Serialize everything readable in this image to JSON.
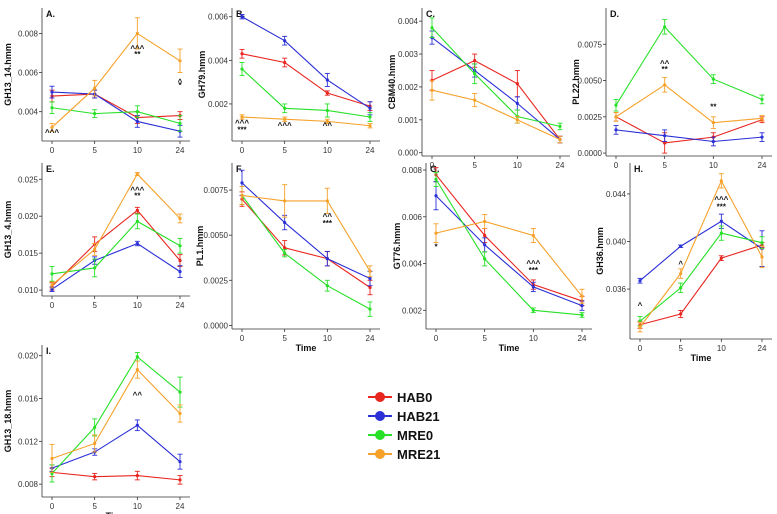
{
  "legend": [
    {
      "name": "HAB0",
      "color": "#e8251f"
    },
    {
      "name": "HAB21",
      "color": "#2b2fd6"
    },
    {
      "name": "MRE0",
      "color": "#27e027"
    },
    {
      "name": "MRE21",
      "color": "#f6a12a"
    }
  ],
  "chart_data": [
    {
      "id": "A",
      "panel_label": "A.",
      "type": "line",
      "ylabel": "GH13_14.hmm",
      "xlabel": "",
      "x_ticks": [
        "0",
        "5",
        "10",
        "24"
      ],
      "y_ticks": [
        "0.004",
        "0.006",
        "0.008"
      ],
      "ylim": [
        0.0025,
        0.0093
      ],
      "series": [
        {
          "name": "HAB0",
          "values": [
            0.0048,
            0.0049,
            0.0037,
            0.0038
          ],
          "errors": [
            0.0003,
            0.0002,
            0.0003,
            0.0002
          ]
        },
        {
          "name": "HAB21",
          "values": [
            0.005,
            0.0049,
            0.0035,
            0.003
          ],
          "errors": [
            0.0003,
            0.0002,
            0.0003,
            0.0003
          ]
        },
        {
          "name": "MRE0",
          "values": [
            0.0042,
            0.0039,
            0.004,
            0.0034
          ],
          "errors": [
            0.0003,
            0.0002,
            0.0003,
            0.0004
          ]
        },
        {
          "name": "MRE21",
          "values": [
            0.0032,
            0.0052,
            0.008,
            0.0066
          ],
          "errors": [
            0.0002,
            0.0004,
            0.0008,
            0.0006
          ]
        }
      ],
      "annotations": [
        {
          "x": "0",
          "y": 0.0028,
          "text": "^^^"
        },
        {
          "x": "10",
          "y": 0.0071,
          "text": "^^^"
        },
        {
          "x": "10",
          "y": 0.0068,
          "text": "**"
        },
        {
          "x": "24",
          "y": 0.0054,
          "text": "^"
        },
        {
          "x": "24",
          "y": 0.0052,
          "text": "*"
        }
      ]
    },
    {
      "id": "B",
      "panel_label": "B.",
      "type": "line",
      "ylabel": "GH79.hmm",
      "xlabel": "",
      "x_ticks": [
        "0",
        "5",
        "10",
        "24"
      ],
      "y_ticks": [
        "0.002",
        "0.004",
        "0.006"
      ],
      "ylim": [
        0.0003,
        0.0064
      ],
      "series": [
        {
          "name": "HAB0",
          "values": [
            0.0043,
            0.0039,
            0.0025,
            0.0019
          ],
          "errors": [
            0.0002,
            0.0002,
            0.0001,
            0.0002
          ]
        },
        {
          "name": "HAB21",
          "values": [
            0.006,
            0.0049,
            0.0031,
            0.0018
          ],
          "errors": [
            0.0001,
            0.0002,
            0.0003,
            0.0003
          ]
        },
        {
          "name": "MRE0",
          "values": [
            0.0036,
            0.0018,
            0.0017,
            0.0014
          ],
          "errors": [
            0.0003,
            0.0002,
            0.0003,
            0.0002
          ]
        },
        {
          "name": "MRE21",
          "values": [
            0.0014,
            0.0013,
            0.0012,
            0.001
          ],
          "errors": [
            0.0001,
            0.0001,
            0.0001,
            0.0001
          ]
        }
      ],
      "annotations": [
        {
          "x": "0",
          "y": 0.001,
          "text": "^^^"
        },
        {
          "x": "0",
          "y": 0.0007,
          "text": "***"
        },
        {
          "x": "5",
          "y": 0.0009,
          "text": "^^^"
        },
        {
          "x": "10",
          "y": 0.0009,
          "text": "^^"
        }
      ]
    },
    {
      "id": "C",
      "panel_label": "C.",
      "type": "line",
      "ylabel": "CBM40.hmm",
      "xlabel": "",
      "x_ticks": [
        "0",
        "5",
        "10",
        "24"
      ],
      "y_ticks": [
        "0.000",
        "0.001",
        "0.002",
        "0.003",
        "0.004"
      ],
      "ylim": [
        -0.0001,
        0.0044
      ],
      "series": [
        {
          "name": "HAB0",
          "values": [
            0.0022,
            0.0028,
            0.0021,
            0.0004
          ],
          "errors": [
            0.0003,
            0.0002,
            0.0004,
            0.0001
          ]
        },
        {
          "name": "HAB21",
          "values": [
            0.0035,
            0.0025,
            0.0015,
            0.0004
          ],
          "errors": [
            0.0002,
            0.0002,
            0.0002,
            0.0001
          ]
        },
        {
          "name": "MRE0",
          "values": [
            0.0038,
            0.0024,
            0.0011,
            0.0008
          ],
          "errors": [
            0.0003,
            0.0003,
            0.0002,
            0.0001
          ]
        },
        {
          "name": "MRE21",
          "values": [
            0.0019,
            0.0016,
            0.001,
            0.0004
          ],
          "errors": [
            0.0003,
            0.0002,
            0.0001,
            0.0001
          ]
        }
      ],
      "annotations": []
    },
    {
      "id": "D",
      "panel_label": "D.",
      "type": "line",
      "ylabel": "PL22.hmm",
      "xlabel": "",
      "x_ticks": [
        "0",
        "5",
        "10",
        "24"
      ],
      "y_ticks": [
        "0.0000",
        "0.0025",
        "0.0050",
        "0.0075"
      ],
      "ylim": [
        -0.0002,
        0.01
      ],
      "series": [
        {
          "name": "HAB0",
          "values": [
            0.0025,
            0.0007,
            0.0011,
            0.0023
          ],
          "errors": [
            0.0003,
            0.0007,
            0.0003,
            0.0002
          ]
        },
        {
          "name": "HAB21",
          "values": [
            0.0016,
            0.0012,
            0.0008,
            0.0011
          ],
          "errors": [
            0.0003,
            0.0004,
            0.0003,
            0.0003
          ]
        },
        {
          "name": "MRE0",
          "values": [
            0.0033,
            0.0087,
            0.0051,
            0.0037
          ],
          "errors": [
            0.0004,
            0.0005,
            0.0003,
            0.0003
          ]
        },
        {
          "name": "MRE21",
          "values": [
            0.0025,
            0.0047,
            0.0021,
            0.0024
          ],
          "errors": [
            0.0003,
            0.0005,
            0.0004,
            0.0002
          ]
        }
      ],
      "annotations": [
        {
          "x": "5",
          "y": 0.006,
          "text": "^^"
        },
        {
          "x": "5",
          "y": 0.0056,
          "text": "**"
        },
        {
          "x": "10",
          "y": 0.003,
          "text": "**"
        }
      ]
    },
    {
      "id": "E",
      "panel_label": "E.",
      "type": "line",
      "ylabel": "GH13_4.hmm",
      "xlabel": "",
      "x_ticks": [
        "0",
        "5",
        "10",
        "24"
      ],
      "y_ticks": [
        "0.010",
        "0.015",
        "0.020",
        "0.025"
      ],
      "ylim": [
        0.0092,
        0.0272
      ],
      "series": [
        {
          "name": "HAB0",
          "values": [
            0.0105,
            0.0162,
            0.0208,
            0.014
          ],
          "errors": [
            0.0005,
            0.001,
            0.0004,
            0.0008
          ]
        },
        {
          "name": "HAB21",
          "values": [
            0.0101,
            0.014,
            0.0163,
            0.0125
          ],
          "errors": [
            0.0003,
            0.0005,
            0.0003,
            0.0008
          ]
        },
        {
          "name": "MRE0",
          "values": [
            0.0122,
            0.013,
            0.0193,
            0.016
          ],
          "errors": [
            0.001,
            0.0012,
            0.001,
            0.001
          ]
        },
        {
          "name": "MRE21",
          "values": [
            0.0107,
            0.0155,
            0.0257,
            0.0197
          ],
          "errors": [
            0.0004,
            0.0008,
            0.0002,
            0.0006
          ]
        }
      ],
      "annotations": [
        {
          "x": "10",
          "y": 0.0232,
          "text": "^^^"
        },
        {
          "x": "10",
          "y": 0.0224,
          "text": "**"
        }
      ]
    },
    {
      "id": "F",
      "panel_label": "F.",
      "type": "line",
      "ylabel": "PL1.hmm",
      "xlabel": "Time",
      "x_ticks": [
        "0",
        "5",
        "10",
        "24"
      ],
      "y_ticks": [
        "0.0000",
        "0.0025",
        "0.0050",
        "0.0075"
      ],
      "ylim": [
        -0.0002,
        0.009
      ],
      "series": [
        {
          "name": "HAB0",
          "values": [
            0.007,
            0.0043,
            0.0037,
            0.0021
          ],
          "errors": [
            0.0004,
            0.0004,
            0.0004,
            0.0004
          ]
        },
        {
          "name": "HAB21",
          "values": [
            0.0079,
            0.0057,
            0.0037,
            0.0026
          ],
          "errors": [
            0.0007,
            0.0004,
            0.0004,
            0.0004
          ]
        },
        {
          "name": "MRE0",
          "values": [
            0.0072,
            0.004,
            0.0022,
            0.0009
          ],
          "errors": [
            0.0005,
            0.0002,
            0.0003,
            0.0004
          ]
        },
        {
          "name": "MRE21",
          "values": [
            0.0072,
            0.0069,
            0.0069,
            0.003
          ],
          "errors": [
            0.0005,
            0.0009,
            0.0007,
            0.0003
          ]
        }
      ],
      "annotations": [
        {
          "x": "10",
          "y": 0.0059,
          "text": "^^"
        },
        {
          "x": "10",
          "y": 0.0055,
          "text": "***"
        }
      ]
    },
    {
      "id": "G",
      "panel_label": "G.",
      "type": "line",
      "ylabel": "GT76.hmm",
      "xlabel": "Time",
      "x_ticks": [
        "0",
        "5",
        "10",
        "24"
      ],
      "y_ticks": [
        "0.002",
        "0.004",
        "0.006",
        "0.008"
      ],
      "ylim": [
        0.0012,
        0.0083
      ],
      "series": [
        {
          "name": "HAB0",
          "values": [
            0.0078,
            0.0052,
            0.0031,
            0.0024
          ],
          "errors": [
            0.0003,
            0.0003,
            0.0002,
            0.0002
          ]
        },
        {
          "name": "HAB21",
          "values": [
            0.0069,
            0.0048,
            0.003,
            0.0022
          ],
          "errors": [
            0.0006,
            0.0003,
            0.0002,
            0.0002
          ]
        },
        {
          "name": "MRE0",
          "values": [
            0.0076,
            0.0042,
            0.002,
            0.0018
          ],
          "errors": [
            0.0003,
            0.0003,
            0.0001,
            0.0001
          ]
        },
        {
          "name": "MRE21",
          "values": [
            0.0053,
            0.0058,
            0.0052,
            0.0026
          ],
          "errors": [
            0.0004,
            0.0003,
            0.0003,
            0.0003
          ]
        }
      ],
      "annotations": [
        {
          "x": "0",
          "y": 0.0046,
          "text": "*"
        },
        {
          "x": "10",
          "y": 0.0039,
          "text": "^^^"
        },
        {
          "x": "10",
          "y": 0.0036,
          "text": "***"
        }
      ]
    },
    {
      "id": "H",
      "panel_label": "H.",
      "type": "line",
      "ylabel": "GH36.hmm",
      "xlabel": "Time",
      "x_ticks": [
        "0",
        "5",
        "10",
        "24"
      ],
      "y_ticks": [
        "0.036",
        "0.040",
        "0.044"
      ],
      "ylim": [
        0.0318,
        0.0466
      ],
      "series": [
        {
          "name": "HAB0",
          "values": [
            0.033,
            0.0339,
            0.0386,
            0.0397
          ],
          "errors": [
            0.0003,
            0.0003,
            0.0002,
            0.0002
          ]
        },
        {
          "name": "HAB21",
          "values": [
            0.0367,
            0.0396,
            0.0417,
            0.0394
          ],
          "errors": [
            0.0002,
            0.0001,
            0.0006,
            0.0015
          ]
        },
        {
          "name": "MRE0",
          "values": [
            0.0333,
            0.0361,
            0.0407,
            0.0399
          ],
          "errors": [
            0.0004,
            0.0004,
            0.0006,
            0.0005
          ]
        },
        {
          "name": "MRE21",
          "values": [
            0.0328,
            0.0373,
            0.0451,
            0.0387
          ],
          "errors": [
            0.0004,
            0.0004,
            0.0006,
            0.0009
          ]
        }
      ],
      "annotations": [
        {
          "x": "0",
          "y": 0.0344,
          "text": "^"
        },
        {
          "x": "5",
          "y": 0.0379,
          "text": "^"
        },
        {
          "x": "10",
          "y": 0.0433,
          "text": "^^^"
        },
        {
          "x": "10",
          "y": 0.0427,
          "text": "***"
        }
      ]
    },
    {
      "id": "I",
      "panel_label": "I.",
      "type": "line",
      "ylabel": "GH13_18.hmm",
      "xlabel": "Time",
      "x_ticks": [
        "0",
        "5",
        "10",
        "24"
      ],
      "y_ticks": [
        "0.008",
        "0.012",
        "0.016",
        "0.020"
      ],
      "ylim": [
        0.0068,
        0.021
      ],
      "series": [
        {
          "name": "HAB0",
          "values": [
            0.0091,
            0.0087,
            0.0088,
            0.0084
          ],
          "errors": [
            0.0004,
            0.0003,
            0.0004,
            0.0004
          ]
        },
        {
          "name": "HAB21",
          "values": [
            0.0095,
            0.011,
            0.0135,
            0.0101
          ],
          "errors": [
            0.0003,
            0.0003,
            0.0005,
            0.0007
          ]
        },
        {
          "name": "MRE0",
          "values": [
            0.009,
            0.0133,
            0.0199,
            0.0166
          ],
          "errors": [
            0.0008,
            0.0008,
            0.0004,
            0.0014
          ]
        },
        {
          "name": "MRE21",
          "values": [
            0.0104,
            0.0118,
            0.0187,
            0.0146
          ],
          "errors": [
            0.0013,
            0.0008,
            0.0008,
            0.0008
          ]
        }
      ],
      "annotations": [
        {
          "x": "10",
          "y": 0.0161,
          "text": "^^"
        }
      ]
    }
  ]
}
